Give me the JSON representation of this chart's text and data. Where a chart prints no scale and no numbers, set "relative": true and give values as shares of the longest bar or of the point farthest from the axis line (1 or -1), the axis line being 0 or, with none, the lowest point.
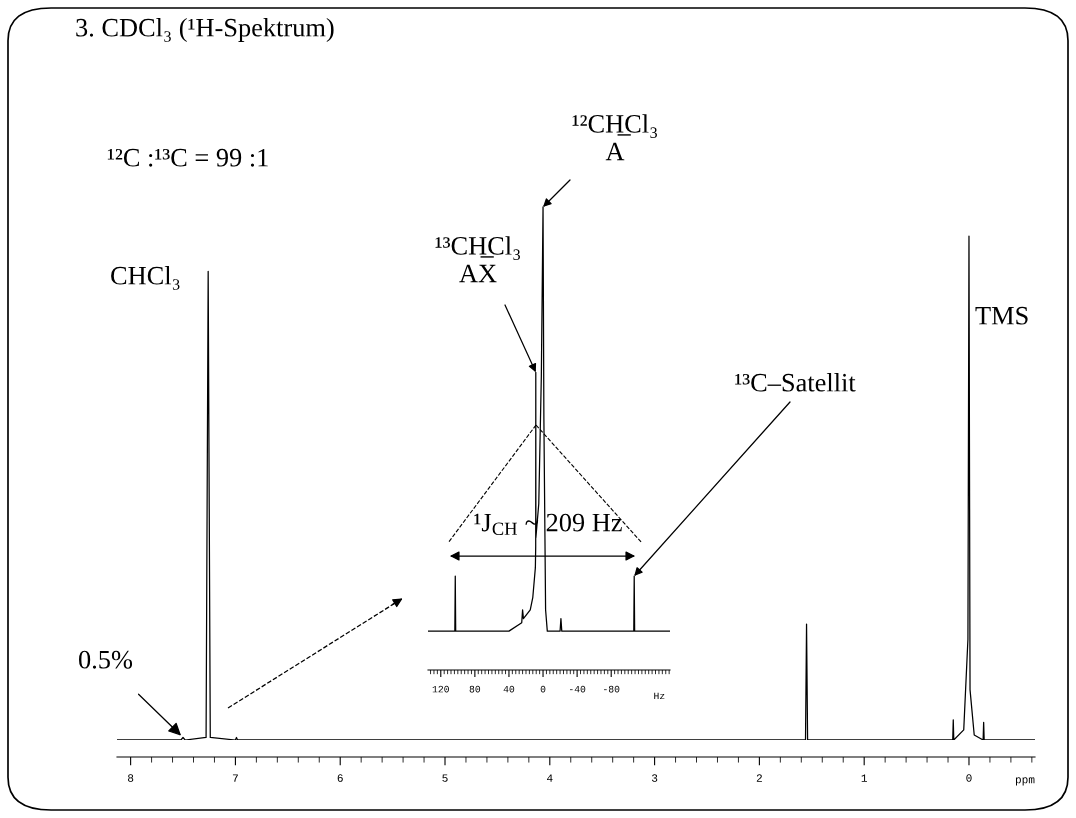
{
  "chart_data": [
    {
      "type": "line",
      "title": "3. CDCl₃ (¹H-Spektrum)",
      "xlabel": "ppm",
      "relative": true,
      "legend": false,
      "grid": false,
      "marker": "none",
      "line_style": "solid",
      "xlim": [
        8.13,
        -0.63
      ],
      "xticks": [
        8,
        7,
        6,
        5,
        4,
        3,
        2,
        1,
        0
      ],
      "x": [
        8.13,
        7.52,
        7.5,
        7.48,
        7.28,
        7.26,
        7.24,
        7.0,
        6.99,
        6.98,
        1.56,
        1.55,
        1.54,
        0.155,
        0.15,
        0.145,
        0.05,
        0.01,
        0,
        -0.01,
        -0.05,
        -0.135,
        -0.14,
        -0.145,
        -0.63
      ],
      "series": [
        {
          "color": "#000000",
          "values": [
            0,
            0,
            0.005,
            0,
            0.005,
            0.93,
            0.005,
            0,
            0.005,
            0,
            0,
            0.23,
            0,
            0,
            0.04,
            0,
            0.02,
            0.2,
            1,
            0.1,
            0.01,
            0,
            0.035,
            0,
            0
          ]
        }
      ],
      "annotations": [
        "¹²C :¹³C = 99 :1",
        {
          "text": "CHCl₃",
          "x": 7.26,
          "y": 0.93
        },
        {
          "text": "0.5%",
          "x": 7.5,
          "y": 0.005
        },
        "TMS"
      ]
    },
    {
      "type": "line",
      "xlabel": "Hz",
      "relative": true,
      "legend": false,
      "grid": false,
      "marker": "none",
      "line_style": "solid",
      "xlim": [
        135,
        -149
      ],
      "xticks": [
        120,
        80,
        40,
        0,
        -40,
        -80
      ],
      "x": [
        135,
        103.5,
        103,
        102.5,
        40,
        25,
        24,
        23,
        15,
        12,
        9,
        8.6,
        8.5,
        8.4,
        5,
        2,
        0,
        -1,
        -3,
        -5,
        -20,
        -21,
        -22,
        -106.5,
        -107,
        -107.5,
        -149
      ],
      "series": [
        {
          "color": "#000000",
          "values": [
            0.084,
            0.084,
            0.203,
            0.084,
            0.084,
            0.102,
            0.13,
            0.111,
            0.13,
            0.157,
            0.221,
            0.267,
            0.643,
            0.286,
            0.359,
            0.634,
            1,
            0.542,
            0.13,
            0.084,
            0.084,
            0.111,
            0.084,
            0.084,
            0.203,
            0.084,
            0.084
          ]
        }
      ],
      "annotations": [
        {
          "text": "¹²CH̲Cl₃\nA",
          "x": 0,
          "y": 1
        },
        {
          "text": "¹³CH̲Cl₃\nAX",
          "x": 8.5,
          "y": 0.643
        },
        {
          "text": "¹³C–Satellit",
          "x": -107,
          "y": 0.203
        },
        "¹J$_{CH}$ ~ 209 Hz"
      ]
    }
  ]
}
